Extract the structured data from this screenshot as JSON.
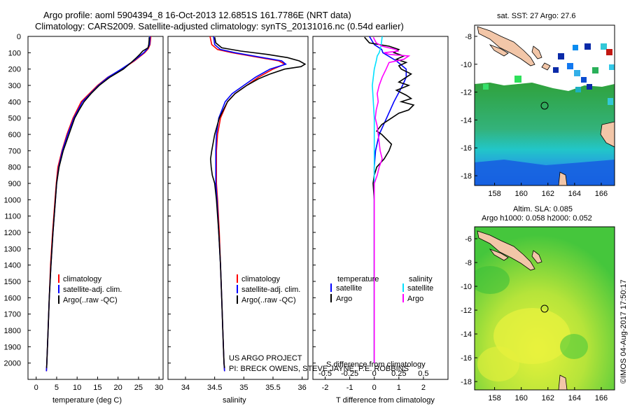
{
  "header": {
    "line1": "Argo profile: aoml 5904394_8 16-Oct-2013 12.6851S 161.7786E (NRT data)",
    "line2": "Climatology: CARS2009. Satellite-adjusted climatology: synTS_20131016.nc (0.54d earlier)"
  },
  "footer_label": {
    "project": "US ARGO PROJECT",
    "pi": "PI: BRECK OWENS, STEVE JAYNE, P.E. ROBBINS"
  },
  "credit": "©IMOS 04-Aug-2017 17:50:17",
  "colors": {
    "climatology": "#ff0000",
    "satellite": "#0000ff",
    "argo": "#000000",
    "salinity_sat": "#00e0ff",
    "salinity_argo": "#ff00ff"
  },
  "chart_data": [
    {
      "type": "line",
      "id": "temperature",
      "xlabel": "temperature (deg C)",
      "ylabel": "",
      "xlim": [
        -2,
        31
      ],
      "ylim": [
        0,
        2100
      ],
      "xticks": [
        0,
        5,
        10,
        15,
        20,
        25,
        30
      ],
      "yticks": [
        0,
        100,
        200,
        300,
        400,
        500,
        600,
        700,
        800,
        900,
        1000,
        1100,
        1200,
        1300,
        1400,
        1500,
        1600,
        1700,
        1800,
        1900,
        2000
      ],
      "legend": {
        "position": "bottom-right",
        "entries": [
          "climatology",
          "satellite-adj. clim.",
          "Argo(..raw -QC)"
        ]
      },
      "series": [
        {
          "name": "climatology",
          "depth": [
            0,
            50,
            75,
            100,
            150,
            200,
            250,
            300,
            400,
            500,
            600,
            700,
            800,
            900,
            1000,
            1200,
            1400,
            1600,
            1800,
            2000,
            2050
          ],
          "values": [
            28.0,
            27.8,
            27.4,
            26.5,
            24.0,
            21.0,
            17.5,
            15.0,
            11.0,
            9.0,
            7.5,
            6.3,
            5.3,
            4.9,
            4.6,
            4.0,
            3.5,
            3.2,
            2.9,
            2.6,
            2.5
          ]
        },
        {
          "name": "satellite-adj. clim.",
          "depth": [
            0,
            50,
            75,
            100,
            150,
            200,
            250,
            300,
            400,
            500,
            600,
            700,
            800,
            900,
            1000,
            1200,
            1400,
            1600,
            1800,
            2000,
            2050
          ],
          "values": [
            27.8,
            27.7,
            27.2,
            26.3,
            23.8,
            20.8,
            17.6,
            15.2,
            11.3,
            9.2,
            7.7,
            6.4,
            5.5,
            5.0,
            4.7,
            4.1,
            3.6,
            3.2,
            2.9,
            2.6,
            2.5
          ]
        },
        {
          "name": "Argo(..raw -QC)",
          "depth": [
            5,
            20,
            50,
            70,
            90,
            110,
            130,
            160,
            200,
            250,
            300,
            350,
            400,
            450,
            500,
            600,
            700,
            800,
            900,
            1000,
            1200,
            1400,
            1600,
            1800,
            2000,
            2030
          ],
          "values": [
            27.6,
            27.6,
            27.5,
            27.3,
            26.0,
            25.3,
            24.5,
            23.2,
            21.3,
            18.0,
            15.4,
            13.4,
            11.7,
            10.5,
            9.4,
            8.0,
            6.6,
            5.6,
            5.0,
            4.7,
            4.1,
            3.6,
            3.2,
            2.9,
            2.6,
            2.55
          ]
        }
      ]
    },
    {
      "type": "line",
      "id": "salinity",
      "xlabel": "salinity",
      "xlim": [
        33.7,
        36.1
      ],
      "ylim": [
        0,
        2100
      ],
      "xticks": [
        34,
        34.5,
        35,
        35.5,
        36
      ],
      "legend": {
        "position": "bottom-right",
        "entries": [
          "climatology",
          "satellite-adj. clim.",
          "Argo(..raw -QC)"
        ]
      },
      "series": [
        {
          "name": "climatology",
          "depth": [
            0,
            50,
            80,
            100,
            150,
            170,
            200,
            250,
            300,
            350,
            400,
            500,
            600,
            700,
            800,
            900,
            1000,
            1200,
            1400,
            1600,
            1800,
            2000,
            2050
          ],
          "values": [
            34.42,
            34.45,
            34.55,
            34.8,
            35.6,
            35.7,
            35.5,
            35.25,
            35.05,
            34.85,
            34.72,
            34.6,
            34.55,
            34.53,
            34.53,
            34.53,
            34.55,
            34.58,
            34.6,
            34.62,
            34.64,
            34.66,
            34.67
          ]
        },
        {
          "name": "satellite-adj. clim.",
          "depth": [
            0,
            50,
            80,
            100,
            150,
            170,
            200,
            250,
            300,
            350,
            400,
            500,
            600,
            700,
            800,
            900,
            1000,
            1200,
            1400,
            1600,
            1800,
            2000,
            2050
          ],
          "values": [
            34.48,
            34.5,
            34.6,
            34.85,
            35.65,
            35.72,
            35.45,
            35.2,
            35.0,
            34.8,
            34.68,
            34.57,
            34.53,
            34.52,
            34.52,
            34.52,
            34.54,
            34.57,
            34.6,
            34.62,
            34.64,
            34.66,
            34.67
          ]
        },
        {
          "name": "Argo(..raw -QC)",
          "depth": [
            5,
            40,
            70,
            90,
            110,
            130,
            150,
            170,
            185,
            200,
            230,
            260,
            300,
            350,
            400,
            500,
            600,
            700,
            750,
            800,
            850,
            900,
            1000,
            1200,
            1400,
            1600,
            1800,
            2000,
            2030
          ],
          "values": [
            34.5,
            34.52,
            34.62,
            34.95,
            35.4,
            35.75,
            35.95,
            36.05,
            35.98,
            35.7,
            35.45,
            35.25,
            35.05,
            34.85,
            34.72,
            34.58,
            34.5,
            34.45,
            34.43,
            34.44,
            34.46,
            34.5,
            34.53,
            34.57,
            34.6,
            34.62,
            34.64,
            34.66,
            34.67
          ]
        }
      ]
    },
    {
      "type": "line",
      "id": "difference",
      "xlabel": "T difference from climatology",
      "xlabel_top": "S difference from climatology",
      "xlim": [
        -2.5,
        3
      ],
      "ylim": [
        0,
        2100
      ],
      "xticks": [
        -2,
        -1,
        0,
        1,
        2
      ],
      "xticks_top": [
        -0.5,
        -0.25,
        0,
        0.25,
        0.5
      ],
      "legend": {
        "position": "bottom-left",
        "temperature_header": "temperature",
        "salinity_header": "salinity",
        "entries": [
          "satellite",
          "Argo",
          "satellite",
          "Argo"
        ]
      },
      "series": [
        {
          "name": "T satellite",
          "depth": [
            0,
            50,
            80,
            100,
            150,
            200,
            250,
            300,
            400,
            500,
            600,
            700,
            800,
            900,
            1000,
            1500,
            2000
          ],
          "values": [
            -0.2,
            0.0,
            0.3,
            0.35,
            0.9,
            1.3,
            1.3,
            1.15,
            0.8,
            0.5,
            0.2,
            0.05,
            0.0,
            0.0,
            0.0,
            0.0,
            0.0
          ]
        },
        {
          "name": "T Argo",
          "depth": [
            5,
            40,
            60,
            80,
            100,
            120,
            140,
            160,
            180,
            200,
            230,
            260,
            280,
            300,
            330,
            360,
            380,
            400,
            420,
            450,
            470,
            500,
            520,
            540,
            560,
            580,
            600,
            630,
            660,
            700,
            750,
            800,
            850,
            900,
            1000,
            1500,
            2000
          ],
          "values": [
            -0.4,
            -0.2,
            0.6,
            1.0,
            0.8,
            1.2,
            0.9,
            1.3,
            1.0,
            1.1,
            1.5,
            1.2,
            1.0,
            1.4,
            0.9,
            1.3,
            1.5,
            1.1,
            1.6,
            1.4,
            1.0,
            0.7,
            0.5,
            0.3,
            0.2,
            0.1,
            0.3,
            0.5,
            0.7,
            0.6,
            0.4,
            0.1,
            0.0,
            -0.05,
            0.0,
            0.0,
            0.0
          ]
        },
        {
          "name": "S satellite",
          "depth": [
            0,
            50,
            80,
            100,
            120,
            150,
            200,
            300,
            400,
            500,
            600,
            700,
            800,
            900,
            1000,
            1500,
            2000
          ],
          "values": [
            0.08,
            0.07,
            0.06,
            0.05,
            0.03,
            0.02,
            0.0,
            -0.02,
            -0.01,
            0.0,
            0.0,
            0.0,
            0.0,
            0.0,
            0.0,
            0.0,
            0.0
          ]
        },
        {
          "name": "S Argo",
          "depth": [
            5,
            40,
            60,
            80,
            90,
            100,
            110,
            120,
            140,
            160,
            200,
            250,
            300,
            350,
            400,
            450,
            500,
            550,
            600,
            650,
            700,
            750,
            800,
            850,
            900,
            1000,
            1500,
            2000
          ],
          "values": [
            -0.01,
            0.02,
            0.08,
            0.22,
            0.24,
            0.1,
            0.15,
            0.35,
            0.3,
            0.15,
            0.12,
            0.08,
            0.05,
            0.03,
            0.04,
            0.02,
            0.01,
            0.03,
            0.04,
            0.05,
            0.06,
            0.08,
            0.05,
            0.03,
            0.0,
            0.0,
            0.0,
            0.0
          ]
        }
      ]
    },
    {
      "type": "heatmap",
      "id": "sst_map",
      "title": "sat. SST: 27 Argo: 27.6",
      "xlim": [
        156.5,
        167
      ],
      "ylim": [
        -18.7,
        -7.2
      ],
      "xticks": [
        158,
        160,
        162,
        164,
        166
      ],
      "yticks": [
        -8,
        -10,
        -12,
        -14,
        -16,
        -18
      ],
      "marker": {
        "lon": 161.78,
        "lat": -12.69
      }
    },
    {
      "type": "heatmap",
      "id": "sla_map",
      "title": "Altim. SLA: 0.085",
      "subtitle": "Argo h1000: 0.058 h2000: 0.052",
      "xlim": [
        156.5,
        167
      ],
      "ylim": [
        -18.7,
        -5
      ],
      "xticks": [
        158,
        160,
        162,
        164,
        166
      ],
      "yticks": [
        -6,
        -8,
        -10,
        -12,
        -14,
        -16,
        -18
      ],
      "marker": {
        "lon": 161.78,
        "lat": -12.69
      }
    }
  ]
}
